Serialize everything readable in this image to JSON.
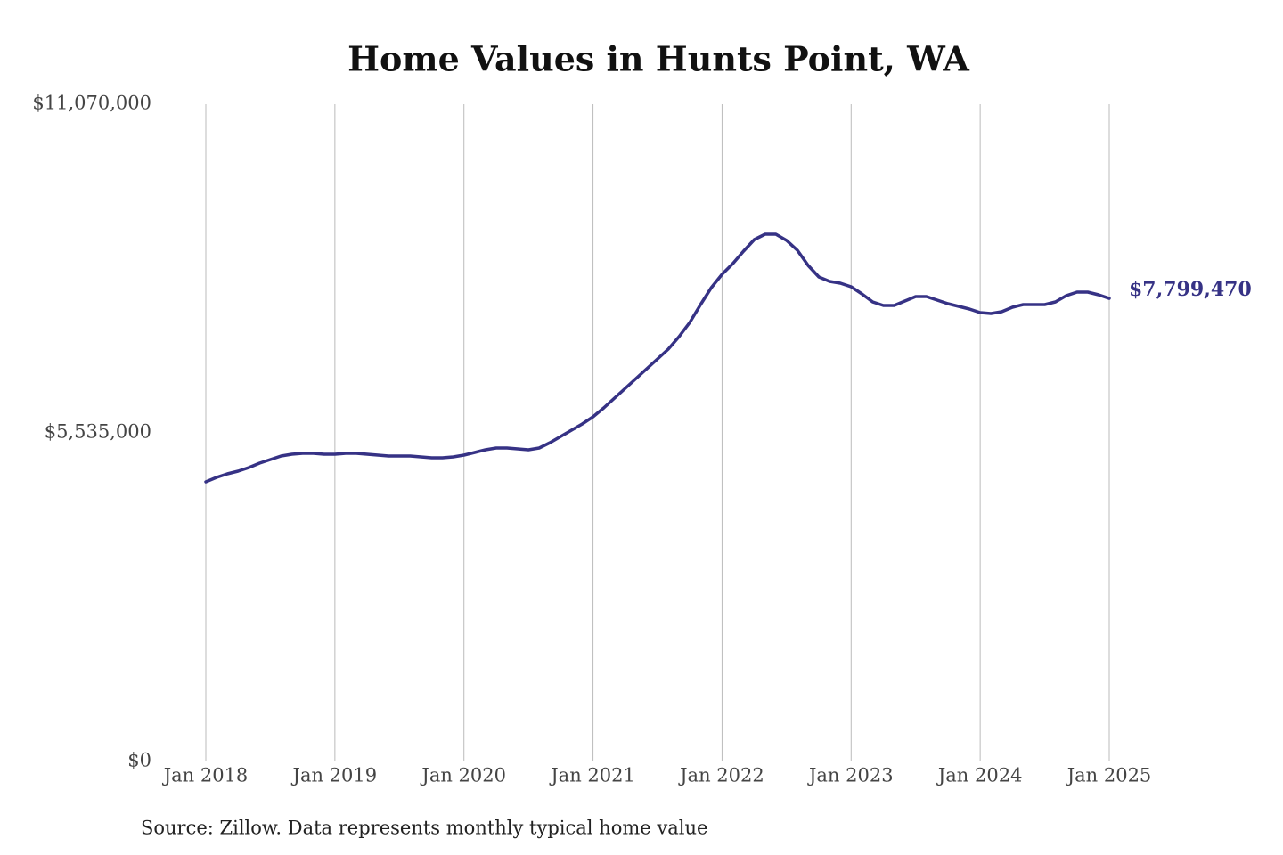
{
  "chart_data": {
    "type": "line",
    "title": "Home Values in Hunts Point, WA",
    "source": "Source: Zillow. Data represents monthly typical home value",
    "categories": [
      "Jan 2018",
      null,
      null,
      null,
      null,
      null,
      null,
      null,
      null,
      null,
      null,
      null,
      "Jan 2019",
      null,
      null,
      null,
      null,
      null,
      null,
      null,
      null,
      null,
      null,
      null,
      "Jan 2020",
      null,
      null,
      null,
      null,
      null,
      null,
      null,
      null,
      null,
      null,
      null,
      "Jan 2021",
      null,
      null,
      null,
      null,
      null,
      null,
      null,
      null,
      null,
      null,
      null,
      "Jan 2022",
      null,
      null,
      null,
      null,
      null,
      null,
      null,
      null,
      null,
      null,
      null,
      "Jan 2023",
      null,
      null,
      null,
      null,
      null,
      null,
      null,
      null,
      null,
      null,
      null,
      "Jan 2024",
      null,
      null,
      null,
      null,
      null,
      null,
      null,
      null,
      null,
      null,
      null,
      "Jan 2025"
    ],
    "series": [
      {
        "name": "Home value",
        "color": "#363285",
        "values": [
          4710000,
          4785000,
          4845000,
          4890000,
          4950000,
          5025000,
          5085000,
          5145000,
          5175000,
          5190000,
          5190000,
          5175000,
          5175000,
          5190000,
          5190000,
          5175000,
          5160000,
          5145000,
          5145000,
          5145000,
          5130000,
          5115000,
          5115000,
          5130000,
          5160000,
          5205000,
          5250000,
          5280000,
          5280000,
          5265000,
          5250000,
          5280000,
          5370000,
          5475000,
          5580000,
          5685000,
          5805000,
          5955000,
          6120000,
          6285000,
          6450000,
          6615000,
          6780000,
          6945000,
          7155000,
          7395000,
          7695000,
          7980000,
          8205000,
          8385000,
          8595000,
          8790000,
          8880000,
          8880000,
          8775000,
          8610000,
          8355000,
          8160000,
          8085000,
          8055000,
          7995000,
          7875000,
          7740000,
          7680000,
          7680000,
          7755000,
          7830000,
          7830000,
          7770000,
          7710000,
          7665000,
          7620000,
          7560000,
          7545000,
          7575000,
          7650000,
          7695000,
          7695000,
          7695000,
          7740000,
          7845000,
          7905000,
          7905000,
          7860000,
          7799470
        ],
        "value_labels": [
          null,
          null,
          null,
          null,
          null,
          null,
          null,
          null,
          null,
          null,
          null,
          null,
          null,
          null,
          null,
          null,
          null,
          null,
          null,
          null,
          null,
          null,
          null,
          null,
          null,
          null,
          null,
          null,
          null,
          null,
          null,
          null,
          null,
          null,
          null,
          null,
          null,
          null,
          null,
          null,
          null,
          null,
          null,
          null,
          null,
          null,
          null,
          null,
          null,
          null,
          null,
          null,
          null,
          null,
          null,
          null,
          null,
          null,
          null,
          null,
          null,
          null,
          null,
          null,
          null,
          null,
          null,
          null,
          null,
          null,
          null,
          null,
          null,
          null,
          null,
          null,
          null,
          null,
          null,
          null,
          null,
          null,
          null,
          null,
          "$7,799,470"
        ]
      }
    ],
    "ylim": [
      0,
      11070000
    ],
    "yticks": [
      {
        "value": 0,
        "label": "$0"
      },
      {
        "value": 5535000,
        "label": "$5,535,000"
      },
      {
        "value": 11070000,
        "label": "$11,070,000"
      }
    ],
    "xgrid": true
  }
}
